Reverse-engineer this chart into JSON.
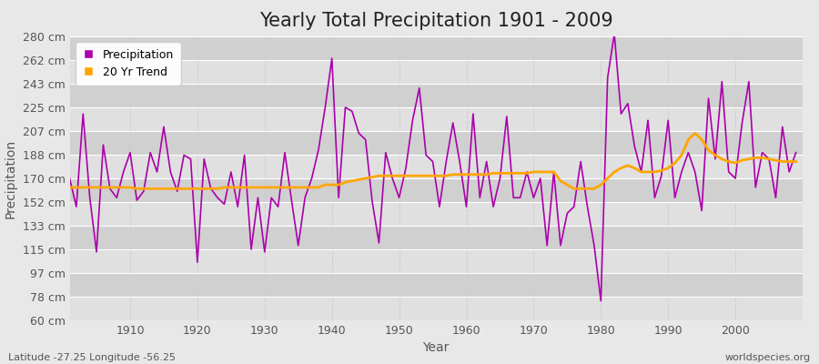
{
  "title": "Yearly Total Precipitation 1901 - 2009",
  "xlabel": "Year",
  "ylabel": "Precipitation",
  "lat_lon_label": "Latitude -27.25 Longitude -56.25",
  "watermark": "worldspecies.org",
  "years": [
    1901,
    1902,
    1903,
    1904,
    1905,
    1906,
    1907,
    1908,
    1909,
    1910,
    1911,
    1912,
    1913,
    1914,
    1915,
    1916,
    1917,
    1918,
    1919,
    1920,
    1921,
    1922,
    1923,
    1924,
    1925,
    1926,
    1927,
    1928,
    1929,
    1930,
    1931,
    1932,
    1933,
    1934,
    1935,
    1936,
    1937,
    1938,
    1939,
    1940,
    1941,
    1942,
    1943,
    1944,
    1945,
    1946,
    1947,
    1948,
    1949,
    1950,
    1951,
    1952,
    1953,
    1954,
    1955,
    1956,
    1957,
    1958,
    1959,
    1960,
    1961,
    1962,
    1963,
    1964,
    1965,
    1966,
    1967,
    1968,
    1969,
    1970,
    1971,
    1972,
    1973,
    1974,
    1975,
    1976,
    1977,
    1978,
    1979,
    1980,
    1981,
    1982,
    1983,
    1984,
    1985,
    1986,
    1987,
    1988,
    1989,
    1990,
    1991,
    1992,
    1993,
    1994,
    1995,
    1996,
    1997,
    1998,
    1999,
    2000,
    2001,
    2002,
    2003,
    2004,
    2005,
    2006,
    2007,
    2008,
    2009
  ],
  "precip": [
    170,
    148,
    220,
    155,
    113,
    196,
    162,
    155,
    175,
    190,
    153,
    160,
    190,
    175,
    210,
    175,
    160,
    188,
    185,
    105,
    185,
    162,
    155,
    150,
    175,
    148,
    188,
    115,
    155,
    113,
    155,
    148,
    190,
    153,
    118,
    155,
    170,
    192,
    225,
    263,
    155,
    225,
    222,
    205,
    200,
    152,
    120,
    190,
    170,
    155,
    178,
    215,
    240,
    188,
    183,
    148,
    183,
    213,
    183,
    148,
    220,
    155,
    183,
    148,
    170,
    218,
    155,
    155,
    175,
    155,
    170,
    118,
    175,
    118,
    143,
    148,
    183,
    148,
    118,
    75,
    248,
    282,
    220,
    228,
    195,
    175,
    215,
    155,
    172,
    215,
    155,
    175,
    190,
    175,
    145,
    232,
    185,
    245,
    175,
    170,
    213,
    245,
    163,
    190,
    185,
    155,
    210,
    175,
    190
  ],
  "trend": [
    163,
    163,
    163,
    163,
    163,
    163,
    163,
    163,
    163,
    163,
    162,
    162,
    162,
    162,
    162,
    162,
    162,
    162,
    162,
    162,
    162,
    162,
    162,
    163,
    163,
    163,
    163,
    163,
    163,
    163,
    163,
    163,
    163,
    163,
    163,
    163,
    163,
    163,
    165,
    165,
    165,
    167,
    168,
    169,
    170,
    171,
    172,
    172,
    172,
    172,
    172,
    172,
    172,
    172,
    172,
    172,
    172,
    173,
    173,
    173,
    173,
    173,
    173,
    174,
    174,
    174,
    174,
    174,
    174,
    175,
    175,
    175,
    175,
    168,
    165,
    162,
    162,
    162,
    162,
    165,
    170,
    175,
    178,
    180,
    178,
    175,
    175,
    175,
    176,
    178,
    182,
    188,
    200,
    205,
    200,
    192,
    188,
    185,
    183,
    182,
    184,
    185,
    186,
    186,
    185,
    184,
    183,
    183,
    183
  ],
  "ylim": [
    60,
    280
  ],
  "yticks": [
    60,
    78,
    97,
    115,
    133,
    152,
    170,
    188,
    207,
    225,
    243,
    262,
    280
  ],
  "ytick_labels": [
    "60 cm",
    "78 cm",
    "97 cm",
    "115 cm",
    "133 cm",
    "152 cm",
    "170 cm",
    "188 cm",
    "207 cm",
    "225 cm",
    "243 cm",
    "262 cm",
    "280 cm"
  ],
  "xticks": [
    1910,
    1920,
    1930,
    1940,
    1950,
    1960,
    1970,
    1980,
    1990,
    2000
  ],
  "precip_color": "#aa00aa",
  "trend_color": "#ffa500",
  "bg_color": "#e8e8e8",
  "plot_bg_color_light": "#e0e0e0",
  "plot_bg_color_dark": "#d0d0d0",
  "grid_color_h": "#ffffff",
  "grid_color_v": "#cccccc",
  "title_fontsize": 15,
  "axis_label_fontsize": 10,
  "tick_fontsize": 9,
  "legend_fontsize": 9,
  "watermark_fontsize": 8,
  "lat_lon_fontsize": 8,
  "xlim_left": 1901,
  "xlim_right": 2010
}
